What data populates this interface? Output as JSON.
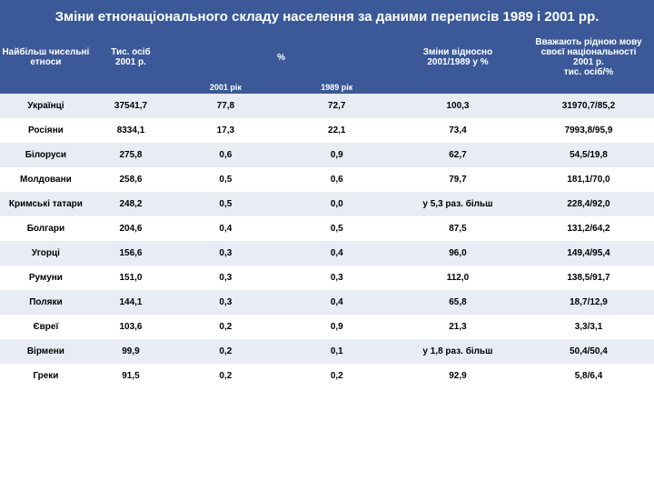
{
  "title": "Зміни етнонаціонального складу населення за даними переписів 1989 і 2001 рр.",
  "headers": {
    "h1": "Найбільш чисельні",
    "h1b": "етноси",
    "h2": "Тис. осіб",
    "h2b": "2001 р.",
    "h3": "%",
    "h3a": "2001 рік",
    "h3b": "1989 рік",
    "h4": "Зміни відносно",
    "h4b": "2001/1989 у %",
    "h5": "Вважають рідною мову",
    "h5b": "своєї національності",
    "h5c": "2001 р.",
    "h5d": "тис. осіб/%"
  },
  "rows": [
    {
      "name": "Українці",
      "th": "37541,7",
      "p01": "77,8",
      "p89": "72,7",
      "chg": "100,3",
      "lang": "31970,7/85,2"
    },
    {
      "name": "Росіяни",
      "th": "8334,1",
      "p01": "17,3",
      "p89": "22,1",
      "chg": "73,4",
      "lang": "7993,8/95,9"
    },
    {
      "name": "Білоруси",
      "th": "275,8",
      "p01": "0,6",
      "p89": "0,9",
      "chg": "62,7",
      "lang": "54,5/19,8"
    },
    {
      "name": "Молдовани",
      "th": "258,6",
      "p01": "0,5",
      "p89": "0,6",
      "chg": "79,7",
      "lang": "181,1/70,0"
    },
    {
      "name": "Кримські татари",
      "th": "248,2",
      "p01": "0,5",
      "p89": "0,0",
      "chg": "у 5,3 раз. більш",
      "lang": "228,4/92,0"
    },
    {
      "name": "Болгари",
      "th": "204,6",
      "p01": "0,4",
      "p89": "0,5",
      "chg": "87,5",
      "lang": "131,2/64,2"
    },
    {
      "name": "Угорці",
      "th": "156,6",
      "p01": "0,3",
      "p89": "0,4",
      "chg": "96,0",
      "lang": "149,4/95,4"
    },
    {
      "name": "Румуни",
      "th": "151,0",
      "p01": "0,3",
      "p89": "0,3",
      "chg": "112,0",
      "lang": "138,5/91,7"
    },
    {
      "name": "Поляки",
      "th": "144,1",
      "p01": "0,3",
      "p89": "0,4",
      "chg": "65,8",
      "lang": "18,7/12,9"
    },
    {
      "name": "Євреї",
      "th": "103,6",
      "p01": "0,2",
      "p89": "0,9",
      "chg": "21,3",
      "lang": "3,3/3,1"
    },
    {
      "name": "Вірмени",
      "th": "99,9",
      "p01": "0,2",
      "p89": "0,1",
      "chg": "у 1,8 раз. більш",
      "lang": "50,4/50,4"
    },
    {
      "name": "Греки",
      "th": "91,5",
      "p01": "0,2",
      "p89": "0,2",
      "chg": "92,9",
      "lang": "5,8/6,4"
    }
  ],
  "colors": {
    "header_bg": "#3b5998",
    "header_fg": "#ffffff",
    "row_odd": "#e8ecf5",
    "row_even": "#ffffff"
  }
}
